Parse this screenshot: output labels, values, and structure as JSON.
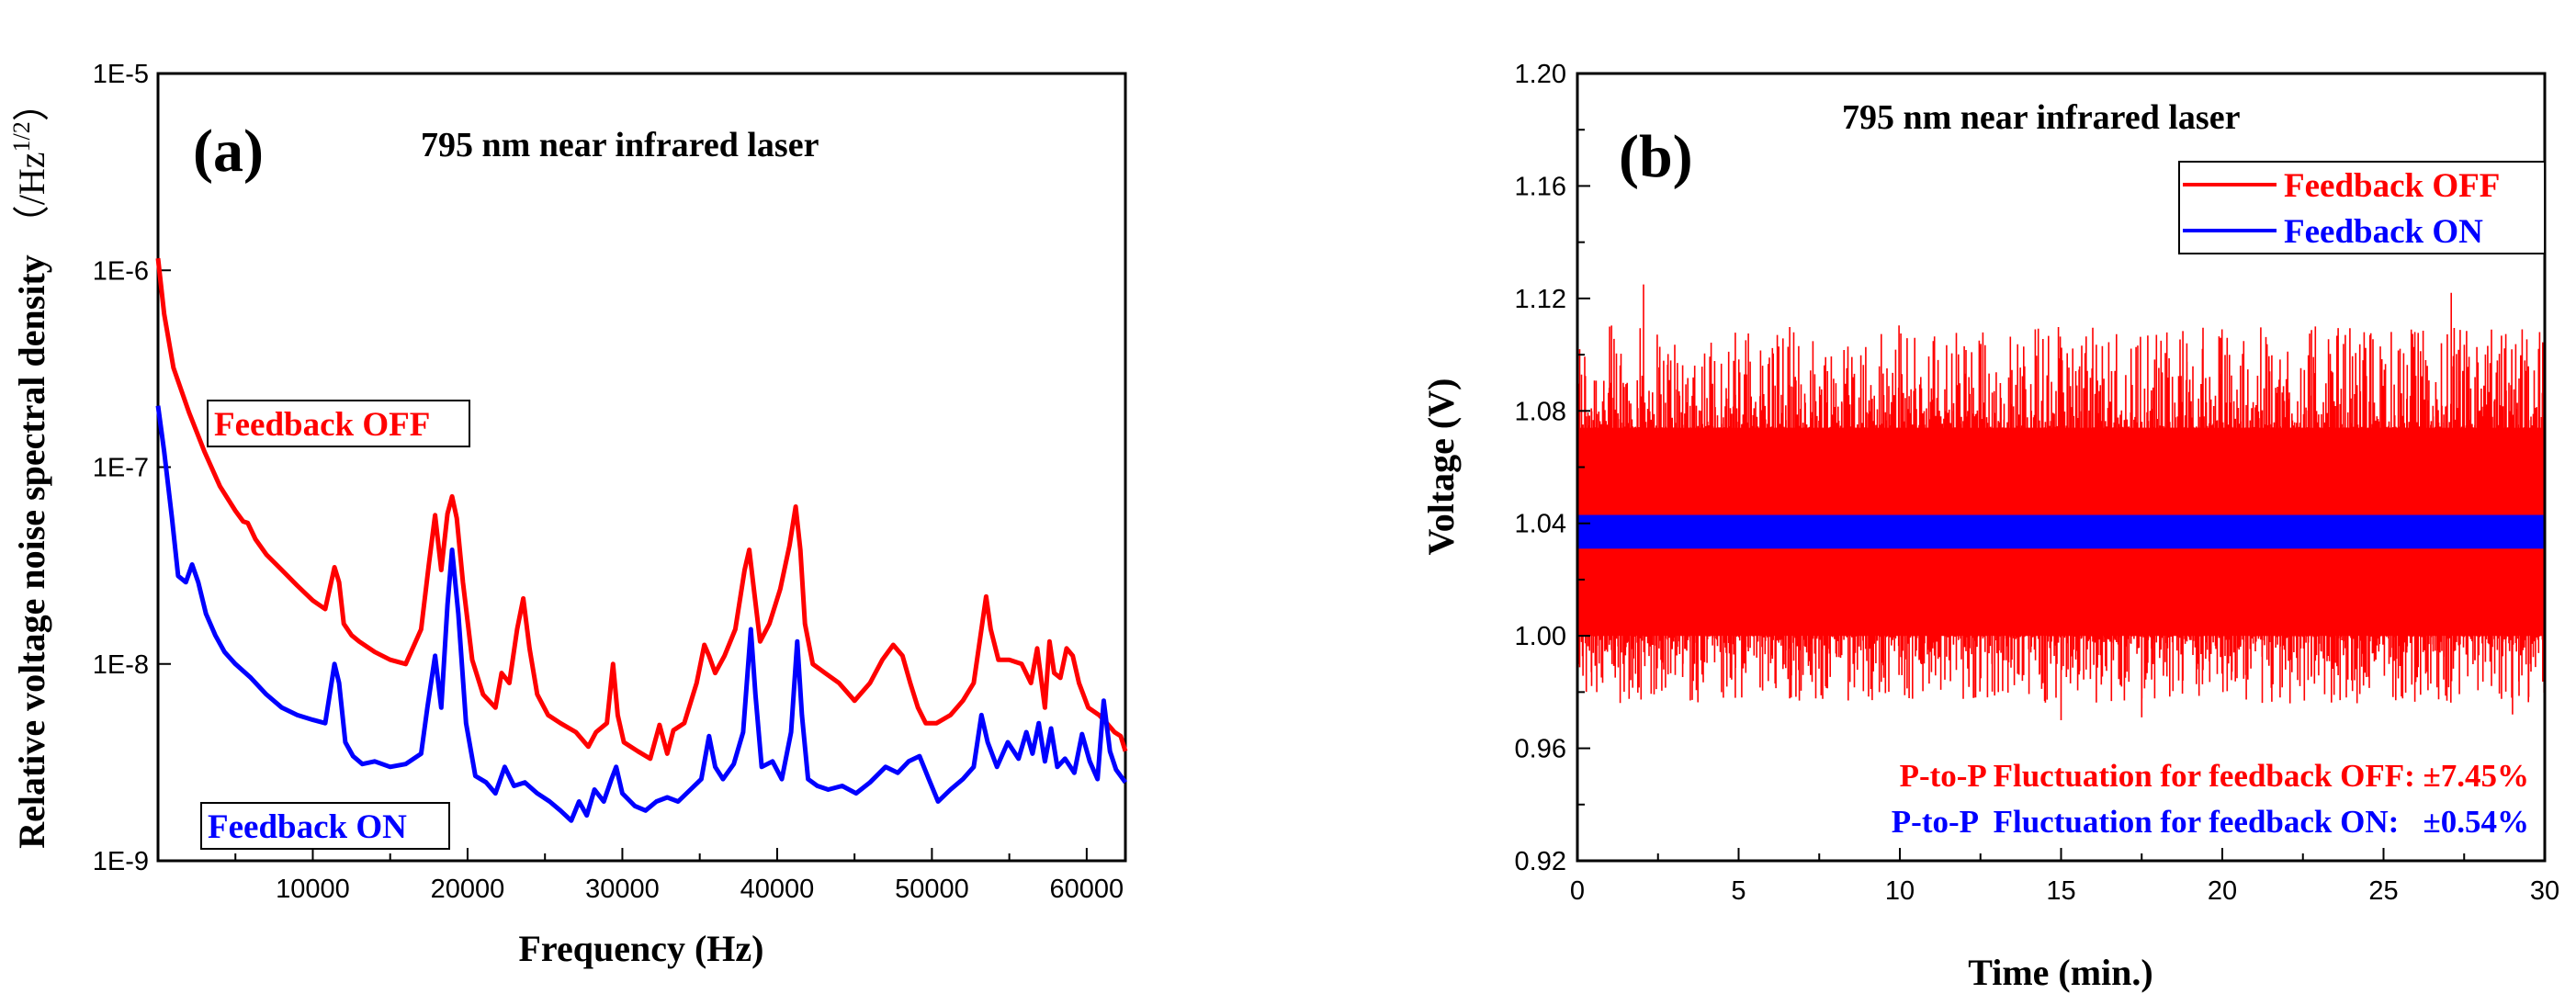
{
  "chart_data": [
    {
      "type": "line",
      "panel_label": "(a)",
      "title": "795 nm near infrared laser",
      "xlabel": "Frequency  (Hz)",
      "ylabel": "Relative voltage  noise spectral density",
      "ylabel_unit": "（/Hz",
      "ylabel_unit_sup": "1/2",
      "ylabel_unit_close": "）",
      "xlim": [
        0,
        62500
      ],
      "ylim": [
        1e-09,
        1e-05
      ],
      "yscale": "log",
      "x_ticks": [
        10000,
        20000,
        30000,
        40000,
        50000,
        60000
      ],
      "x_tick_labels": [
        "10000",
        "20000",
        "30000",
        "40000",
        "50000",
        "60000"
      ],
      "y_ticks": [
        1e-09,
        1e-08,
        1e-07,
        1e-06,
        1e-05
      ],
      "y_tick_labels": [
        "1E-9",
        "1E-8",
        "1E-7",
        "1E-6",
        "1E-5"
      ],
      "series": [
        {
          "name": "Feedback OFF",
          "color": "#ff0000",
          "label": "Feedback OFF",
          "x": [
            0,
            400,
            1000,
            2000,
            3000,
            4000,
            5000,
            5500,
            5800,
            6300,
            7000,
            8000,
            9000,
            10000,
            10800,
            11400,
            11700,
            12000,
            12500,
            13000,
            14000,
            15000,
            16000,
            17000,
            17500,
            17900,
            18300,
            18700,
            19000,
            19300,
            19700,
            20300,
            21000,
            21800,
            22200,
            22700,
            23200,
            23600,
            24000,
            24500,
            25200,
            26000,
            27000,
            27800,
            28300,
            29000,
            29400,
            29700,
            30100,
            31000,
            31800,
            32400,
            32900,
            33300,
            34000,
            34800,
            35300,
            35600,
            36000,
            36600,
            37300,
            37900,
            38200,
            38500,
            38900,
            39500,
            40200,
            40800,
            41200,
            41500,
            41800,
            42300,
            43100,
            44000,
            45000,
            46000,
            46800,
            47500,
            48100,
            48600,
            49100,
            49600,
            50300,
            51200,
            52000,
            52700,
            53200,
            53500,
            53800,
            54300,
            55000,
            55800,
            56400,
            56800,
            57300,
            57600,
            57900,
            58300,
            58700,
            59100,
            59500,
            60100,
            60800,
            61300,
            61800,
            62200,
            62500
          ],
          "y": [
            1.15e-06,
            6e-07,
            3.2e-07,
            1.9e-07,
            1.2e-07,
            8e-08,
            6e-08,
            5.3e-08,
            5.2e-08,
            4.3e-08,
            3.6e-08,
            3e-08,
            2.5e-08,
            2.1e-08,
            1.9e-08,
            3.1e-08,
            2.6e-08,
            1.6e-08,
            1.4e-08,
            1.3e-08,
            1.15e-08,
            1.05e-08,
            1e-08,
            1.5e-08,
            3.2e-08,
            5.7e-08,
            3e-08,
            5.8e-08,
            7.1e-08,
            5.5e-08,
            2.6e-08,
            1.05e-08,
            7e-09,
            6e-09,
            9e-09,
            8e-09,
            1.5e-08,
            2.15e-08,
            1.2e-08,
            7e-09,
            5.5e-09,
            5e-09,
            4.5e-09,
            3.8e-09,
            4.5e-09,
            5e-09,
            1e-08,
            5.5e-09,
            4e-09,
            3.6e-09,
            3.3e-09,
            4.9e-09,
            3.5e-09,
            4.6e-09,
            5e-09,
            8e-09,
            1.25e-08,
            1.1e-08,
            9e-09,
            1.1e-08,
            1.5e-08,
            3e-08,
            3.8e-08,
            2.4e-08,
            1.3e-08,
            1.6e-08,
            2.4e-08,
            4e-08,
            6.3e-08,
            3.8e-08,
            1.6e-08,
            1e-08,
            9e-09,
            8e-09,
            6.5e-09,
            8e-09,
            1.05e-08,
            1.25e-08,
            1.1e-08,
            8e-09,
            6e-09,
            5e-09,
            5e-09,
            5.5e-09,
            6.5e-09,
            8e-09,
            1.5e-08,
            2.2e-08,
            1.5e-08,
            1.05e-08,
            1.05e-08,
            1e-08,
            8e-09,
            1.2e-08,
            6e-09,
            1.3e-08,
            9e-09,
            8.5e-09,
            1.2e-08,
            1.1e-08,
            8e-09,
            6e-09,
            5.5e-09,
            5e-09,
            4.5e-09,
            4.3e-09,
            3.6e-09
          ]
        },
        {
          "name": "Feedback ON",
          "color": "#0000ff",
          "label": "Feedback ON",
          "x": [
            0,
            400,
            900,
            1300,
            1800,
            2200,
            2600,
            3100,
            3700,
            4300,
            5000,
            6000,
            7000,
            8000,
            9000,
            10000,
            10800,
            11400,
            11700,
            12100,
            12600,
            13200,
            14000,
            15000,
            16000,
            17000,
            17400,
            17900,
            18300,
            18700,
            19000,
            19400,
            19900,
            20500,
            21200,
            21800,
            22400,
            23000,
            23700,
            24500,
            25300,
            26000,
            26700,
            27200,
            27700,
            28200,
            28800,
            29300,
            29600,
            30000,
            30800,
            31500,
            32200,
            32900,
            33600,
            34400,
            35100,
            35600,
            36000,
            36500,
            37200,
            37800,
            38300,
            38600,
            39000,
            39700,
            40300,
            40900,
            41300,
            41600,
            42000,
            42600,
            43300,
            44200,
            45100,
            46000,
            47000,
            47800,
            48500,
            49200,
            49800,
            50400,
            51200,
            52000,
            52700,
            53200,
            53600,
            54200,
            54900,
            55600,
            56100,
            56500,
            56900,
            57300,
            57700,
            58100,
            58600,
            59200,
            59700,
            60200,
            60700,
            61100,
            61500,
            61900,
            62500
          ],
          "y": [
            2.05e-07,
            1.2e-07,
            5.5e-08,
            2.8e-08,
            2.6e-08,
            3.2e-08,
            2.6e-08,
            1.8e-08,
            1.4e-08,
            1.15e-08,
            1e-08,
            8.5e-09,
            7e-09,
            6e-09,
            5.5e-09,
            5.2e-09,
            5e-09,
            1e-08,
            8e-09,
            4e-09,
            3.4e-09,
            3.1e-09,
            3.2e-09,
            3e-09,
            3.1e-09,
            3.5e-09,
            6e-09,
            1.1e-08,
            6e-09,
            2e-08,
            3.8e-08,
            1.8e-08,
            5e-09,
            2.7e-09,
            2.5e-09,
            2.2e-09,
            3e-09,
            2.4e-09,
            2.5e-09,
            2.2e-09,
            2e-09,
            1.8e-09,
            1.6e-09,
            2e-09,
            1.7e-09,
            2.3e-09,
            2e-09,
            2.6e-09,
            3e-09,
            2.2e-09,
            1.9e-09,
            1.8e-09,
            2e-09,
            2.1e-09,
            2e-09,
            2.3e-09,
            2.6e-09,
            4.3e-09,
            3e-09,
            2.6e-09,
            3.1e-09,
            4.5e-09,
            1.5e-08,
            7e-09,
            3e-09,
            3.2e-09,
            2.6e-09,
            4.5e-09,
            1.3e-08,
            5.5e-09,
            2.6e-09,
            2.4e-09,
            2.3e-09,
            2.4e-09,
            2.2e-09,
            2.5e-09,
            3e-09,
            2.8e-09,
            3.2e-09,
            3.4e-09,
            2.6e-09,
            2e-09,
            2.3e-09,
            2.6e-09,
            3e-09,
            5.5e-09,
            4e-09,
            3e-09,
            4e-09,
            3.3e-09,
            4.5e-09,
            3.5e-09,
            5e-09,
            3.2e-09,
            4.7e-09,
            3e-09,
            3.3e-09,
            2.8e-09,
            4.4e-09,
            3.2e-09,
            2.6e-09,
            6.5e-09,
            3.6e-09,
            2.9e-09,
            2.5e-09
          ]
        }
      ]
    },
    {
      "type": "line",
      "panel_label": "(b)",
      "title": "795 nm near infrared laser",
      "xlabel": "Time  (min.)",
      "ylabel": "Voltage  (V)",
      "xlim": [
        0,
        30
      ],
      "ylim": [
        0.92,
        1.2
      ],
      "x_ticks": [
        0,
        5,
        10,
        15,
        20,
        25,
        30
      ],
      "x_tick_labels": [
        "0",
        "5",
        "10",
        "15",
        "20",
        "25",
        "30"
      ],
      "y_ticks": [
        0.92,
        0.96,
        1.0,
        1.04,
        1.08,
        1.12,
        1.16,
        1.2
      ],
      "y_tick_labels": [
        "0.92",
        "0.96",
        "1.00",
        "1.04",
        "1.08",
        "1.12",
        "1.16",
        "1.20"
      ],
      "legend_position": "top-right",
      "series": [
        {
          "name": "Feedback OFF",
          "color": "#ff0000",
          "mean": 1.037,
          "band_typical": [
            1.0,
            1.074
          ],
          "band_min": 0.97,
          "band_max": 1.125,
          "spikes": [
            [
              2.05,
              1.125
            ],
            [
              27.1,
              1.122
            ],
            [
              1.0,
              1.11
            ],
            [
              6.2,
              1.107
            ],
            [
              14.2,
              1.109
            ],
            [
              18.9,
              1.104
            ],
            [
              24.4,
              1.108
            ],
            [
              29.3,
              1.109
            ],
            [
              15.0,
              0.97
            ],
            [
              17.5,
              0.971
            ],
            [
              0.6,
              0.98
            ],
            [
              8.4,
              0.977
            ],
            [
              12.3,
              0.978
            ],
            [
              22.1,
              0.976
            ],
            [
              29.0,
              0.972
            ]
          ]
        },
        {
          "name": "Feedback ON",
          "color": "#0000ff",
          "band": [
            1.031,
            1.043
          ]
        }
      ],
      "annotations": [
        {
          "text": "P-to-P  Fluctuation for feedback OFF: ±7.45%",
          "color": "#ff0000"
        },
        {
          "text": "P-to-P  Fluctuation for feedback ON:   ±0.54%",
          "color": "#0000ff"
        }
      ]
    }
  ]
}
